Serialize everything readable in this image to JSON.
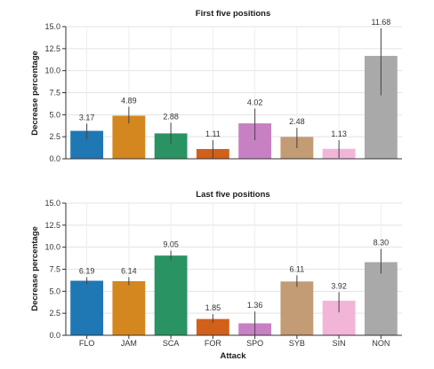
{
  "chart_data": [
    {
      "type": "bar",
      "title": "First five positions",
      "ylabel": "Decrease percentage",
      "xlabel": "",
      "ylim": [
        0,
        15
      ],
      "yticks": [
        "0.0",
        "2.5",
        "5.0",
        "7.5",
        "10.0",
        "12.5",
        "15.0"
      ],
      "grid": true,
      "categories": [
        "FLO",
        "JAM",
        "SCA",
        "FOR",
        "SPO",
        "SYB",
        "SIN",
        "NON"
      ],
      "values": [
        3.17,
        4.89,
        2.88,
        1.11,
        4.02,
        2.48,
        1.13,
        11.68
      ],
      "value_labels": [
        "3.17",
        "4.89",
        "2.88",
        "1.11",
        "4.02",
        "2.48",
        "1.13",
        "11.68"
      ],
      "error_low": [
        2.2,
        4.0,
        1.7,
        0.0,
        2.1,
        1.2,
        0.1,
        7.2
      ],
      "error_high": [
        4.0,
        5.9,
        4.1,
        2.1,
        5.7,
        3.5,
        2.1,
        14.8
      ],
      "colors": [
        "#1f77b4",
        "#d4871f",
        "#2a9364",
        "#d2601a",
        "#c780c3",
        "#c39b74",
        "#f2b5d8",
        "#a9a9a9"
      ]
    },
    {
      "type": "bar",
      "title": "Last five positions",
      "ylabel": "Decrease percentage",
      "xlabel": "Attack",
      "ylim": [
        0,
        15
      ],
      "yticks": [
        "0.0",
        "2.5",
        "5.0",
        "7.5",
        "10.0",
        "12.5",
        "15.0"
      ],
      "grid": true,
      "categories": [
        "FLO",
        "JAM",
        "SCA",
        "FOR",
        "SPO",
        "SYB",
        "SIN",
        "NON"
      ],
      "values": [
        6.19,
        6.14,
        9.05,
        1.85,
        1.36,
        6.11,
        3.92,
        8.3
      ],
      "value_labels": [
        "6.19",
        "6.14",
        "9.05",
        "1.85",
        "1.36",
        "6.11",
        "3.92",
        "8.30"
      ],
      "error_low": [
        5.8,
        5.7,
        8.5,
        1.4,
        0.0,
        5.5,
        2.6,
        7.0
      ],
      "error_high": [
        6.6,
        6.6,
        9.6,
        2.4,
        2.7,
        6.8,
        4.9,
        9.8
      ],
      "colors": [
        "#1f77b4",
        "#d4871f",
        "#2a9364",
        "#d2601a",
        "#c780c3",
        "#c39b74",
        "#f2b5d8",
        "#a9a9a9"
      ]
    }
  ]
}
